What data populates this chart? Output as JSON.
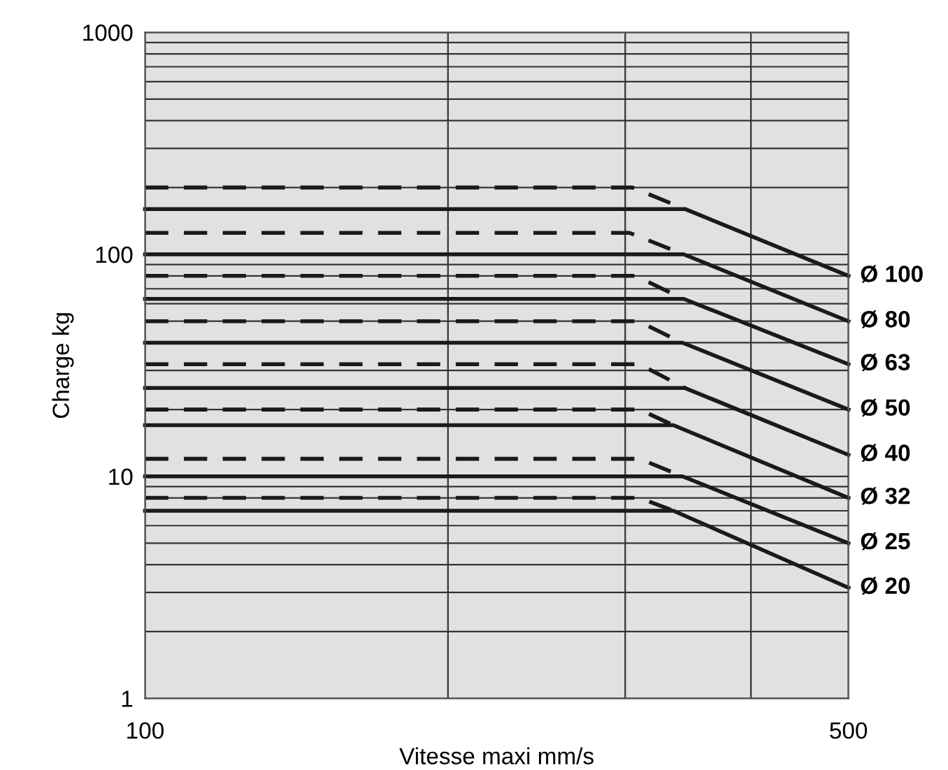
{
  "chart_data": {
    "type": "line",
    "xlabel": "Vitesse maxi mm/s",
    "ylabel": "Charge kg",
    "log": "xy",
    "xlim": [
      100,
      500
    ],
    "ylim": [
      1,
      1000
    ],
    "xticks": [
      100,
      {
        "value": 200,
        "label": null
      },
      {
        "value": 300,
        "label": null
      },
      {
        "value": 400,
        "label": null
      },
      500
    ],
    "yticks": [
      1,
      {
        "value": 2,
        "label": null
      },
      {
        "value": 3,
        "label": null
      },
      {
        "value": 4,
        "label": null
      },
      {
        "value": 5,
        "label": null
      },
      {
        "value": 6,
        "label": null
      },
      {
        "value": 7,
        "label": null
      },
      {
        "value": 8,
        "label": null
      },
      {
        "value": 9,
        "label": null
      },
      10,
      {
        "value": 20,
        "label": null
      },
      {
        "value": 30,
        "label": null
      },
      {
        "value": 40,
        "label": null
      },
      {
        "value": 50,
        "label": null
      },
      {
        "value": 60,
        "label": null
      },
      {
        "value": 70,
        "label": null
      },
      {
        "value": 80,
        "label": null
      },
      {
        "value": 90,
        "label": null
      },
      100,
      {
        "value": 200,
        "label": null
      },
      {
        "value": 300,
        "label": null
      },
      {
        "value": 400,
        "label": null
      },
      {
        "value": 500,
        "label": null
      },
      {
        "value": 600,
        "label": null
      },
      {
        "value": 700,
        "label": null
      },
      {
        "value": 800,
        "label": null
      },
      {
        "value": 900,
        "label": null
      },
      1000
    ],
    "grid": true,
    "legend": false,
    "marker": "none",
    "series": [
      {
        "color": "#1a1a1a",
        "line_style": "dashed",
        "x": [
          100,
          305,
          344
        ],
        "values": [
          200,
          200,
          160
        ]
      },
      {
        "name": "Ø 100",
        "color": "#1a1a1a",
        "line_style": "solid",
        "x": [
          100,
          344,
          500
        ],
        "values": [
          160,
          160,
          80
        ]
      },
      {
        "color": "#1a1a1a",
        "line_style": "dashed",
        "x": [
          100,
          303,
          343
        ],
        "values": [
          125,
          125,
          100
        ]
      },
      {
        "name": "Ø 80",
        "color": "#1a1a1a",
        "line_style": "solid",
        "x": [
          100,
          343,
          500
        ],
        "values": [
          100,
          100,
          50
        ]
      },
      {
        "color": "#1a1a1a",
        "line_style": "dashed",
        "x": [
          100,
          307,
          343
        ],
        "values": [
          80,
          80,
          63
        ]
      },
      {
        "name": "Ø 63",
        "color": "#1a1a1a",
        "line_style": "solid",
        "x": [
          100,
          343,
          500
        ],
        "values": [
          63,
          63,
          32
        ]
      },
      {
        "color": "#1a1a1a",
        "line_style": "dashed",
        "x": [
          100,
          309,
          342
        ],
        "values": [
          50,
          50,
          40
        ]
      },
      {
        "name": "Ø 50",
        "color": "#1a1a1a",
        "line_style": "solid",
        "x": [
          100,
          342,
          500
        ],
        "values": [
          40,
          40,
          20
        ]
      },
      {
        "color": "#1a1a1a",
        "line_style": "dashed",
        "x": [
          100,
          310,
          344
        ],
        "values": [
          32,
          32,
          25
        ]
      },
      {
        "name": "Ø 40",
        "color": "#1a1a1a",
        "line_style": "solid",
        "x": [
          100,
          344,
          500
        ],
        "values": [
          25,
          25,
          12.5
        ]
      },
      {
        "color": "#1a1a1a",
        "line_style": "dashed",
        "x": [
          100,
          310,
          335
        ],
        "values": [
          20,
          20,
          17
        ]
      },
      {
        "name": "Ø 32",
        "color": "#1a1a1a",
        "line_style": "solid",
        "x": [
          100,
          335,
          500
        ],
        "values": [
          17,
          17,
          8
        ]
      },
      {
        "color": "#1a1a1a",
        "line_style": "dashed",
        "x": [
          100,
          310,
          342
        ],
        "values": [
          12,
          12,
          10
        ]
      },
      {
        "name": "Ø 25",
        "color": "#1a1a1a",
        "line_style": "solid",
        "x": [
          100,
          342,
          500
        ],
        "values": [
          10,
          10,
          5
        ]
      },
      {
        "color": "#1a1a1a",
        "line_style": "dashed",
        "x": [
          100,
          310,
          335
        ],
        "values": [
          8,
          8,
          7
        ]
      },
      {
        "name": "Ø 20",
        "color": "#1a1a1a",
        "line_style": "solid",
        "x": [
          100,
          335,
          500
        ],
        "values": [
          7,
          7,
          3.15
        ]
      }
    ]
  }
}
